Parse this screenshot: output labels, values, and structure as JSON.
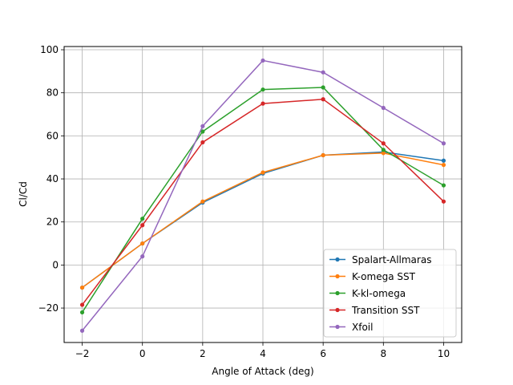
{
  "chart_data": {
    "type": "line",
    "title": "",
    "xlabel": "Angle of Attack (deg)",
    "ylabel": "Cl/Cd",
    "x": [
      -2,
      0,
      2,
      4,
      6,
      8,
      10
    ],
    "xlim": [
      -2.6,
      10.6
    ],
    "ylim": [
      -36,
      101.5
    ],
    "xticks": [
      -2,
      0,
      2,
      4,
      6,
      8,
      10
    ],
    "yticks": [
      -20,
      0,
      20,
      40,
      60,
      80,
      100
    ],
    "xtick_labels": [
      "−2",
      "0",
      "2",
      "4",
      "6",
      "8",
      "10"
    ],
    "ytick_labels": [
      "−20",
      "0",
      "20",
      "40",
      "60",
      "80",
      "100"
    ],
    "grid": true,
    "legend_position": "lower-right",
    "series": [
      {
        "name": "Spalart-Allmaras",
        "color": "#1f77b4",
        "values": [
          -10.5,
          10,
          29,
          42.5,
          51,
          52.5,
          48.5
        ]
      },
      {
        "name": "K-omega SST",
        "color": "#ff7f0e",
        "values": [
          -10.5,
          10,
          29.5,
          43,
          51,
          52,
          46.5
        ]
      },
      {
        "name": "K-kl-omega",
        "color": "#2ca02c",
        "values": [
          -22,
          21.5,
          62,
          81.5,
          82.5,
          53.5,
          37
        ]
      },
      {
        "name": "Transition SST",
        "color": "#d62728",
        "values": [
          -18.5,
          18.5,
          57,
          75,
          77,
          56.5,
          29.5
        ]
      },
      {
        "name": "Xfoil",
        "color": "#9467bd",
        "values": [
          -30.5,
          4,
          64.5,
          95,
          89.5,
          73,
          56.5
        ]
      }
    ]
  }
}
